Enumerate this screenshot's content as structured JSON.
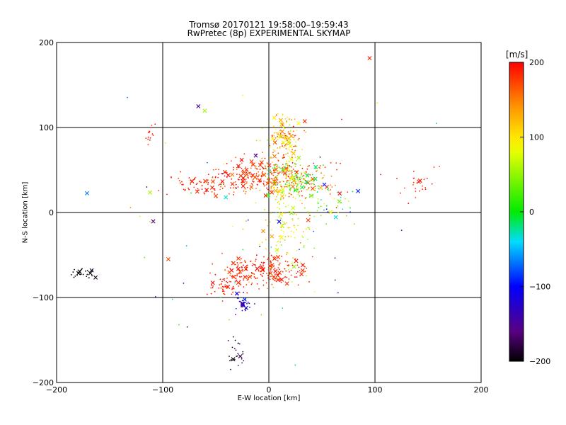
{
  "title_line1": "Tromsø 20170121 19:58:00–19:59:43",
  "title_line2": "RwPretec (8p) EXPERIMENTAL SKYMAP",
  "colorbar_unit": "[m/s]",
  "chart_data": {
    "type": "scatter",
    "title": "Tromsø 20170121 19:58:00–19:59:43 RwPretec (8p) EXPERIMENTAL SKYMAP",
    "xlabel": "E-W location [km]",
    "ylabel": "N-S location [km]",
    "xlim": [
      -200,
      200
    ],
    "ylim": [
      -200,
      200
    ],
    "xticks": [
      -200,
      -100,
      0,
      100,
      200
    ],
    "yticks": [
      -200,
      -100,
      0,
      100,
      200
    ],
    "grid": true,
    "colorbar": {
      "label": "[m/s]",
      "range": [
        -200,
        200
      ],
      "ticks": [
        200,
        100,
        0,
        -100,
        -200
      ],
      "colormap": "black-purple-blue-cyan-green-yellow-orange-red"
    },
    "markers": {
      "velocity": "dot",
      "echo": "x"
    },
    "clusters": [
      {
        "name": "upper-central",
        "x": 15,
        "y": 85,
        "sx": 8,
        "sy": 15,
        "n": 150,
        "v": [
          50,
          200
        ]
      },
      {
        "name": "central-red",
        "x": -2,
        "y": 42,
        "sx": 28,
        "sy": 10,
        "n": 300,
        "v": [
          150,
          200
        ]
      },
      {
        "name": "central-green",
        "x": 25,
        "y": 38,
        "sx": 14,
        "sy": 10,
        "n": 120,
        "v": [
          -20,
          80
        ]
      },
      {
        "name": "left-west",
        "x": -65,
        "y": 32,
        "sx": 14,
        "sy": 7,
        "n": 60,
        "v": [
          170,
          200
        ]
      },
      {
        "name": "left-upper",
        "x": -112,
        "y": 90,
        "sx": 3,
        "sy": 7,
        "n": 15,
        "v": [
          180,
          200
        ]
      },
      {
        "name": "mid-column",
        "x": 18,
        "y": -5,
        "sx": 12,
        "sy": 35,
        "n": 160,
        "v": [
          40,
          140
        ]
      },
      {
        "name": "lower-red",
        "x": -5,
        "y": -68,
        "sx": 20,
        "sy": 10,
        "n": 220,
        "v": [
          170,
          200
        ]
      },
      {
        "name": "lower-left",
        "x": -40,
        "y": -88,
        "sx": 8,
        "sy": 6,
        "n": 50,
        "v": [
          180,
          200
        ]
      },
      {
        "name": "lower-blue",
        "x": -24,
        "y": -108,
        "sx": 4,
        "sy": 6,
        "n": 30,
        "v": [
          -200,
          -80
        ]
      },
      {
        "name": "bottom-column",
        "x": -30,
        "y": -165,
        "sx": 4,
        "sy": 10,
        "n": 25,
        "v": [
          -200,
          -150
        ]
      },
      {
        "name": "far-left-black",
        "x": -173,
        "y": -71,
        "sx": 8,
        "sy": 3,
        "n": 25,
        "v": [
          -200,
          -190
        ]
      },
      {
        "name": "right-cluster",
        "x": 140,
        "y": 32,
        "sx": 10,
        "sy": 10,
        "n": 25,
        "v": [
          170,
          200
        ]
      },
      {
        "name": "right-mid",
        "x": 62,
        "y": 10,
        "sx": 12,
        "sy": 12,
        "n": 40,
        "v": [
          -100,
          200
        ]
      },
      {
        "name": "scattered",
        "x": -20,
        "y": -20,
        "sx": 70,
        "sy": 70,
        "n": 80,
        "v": [
          -200,
          200
        ]
      }
    ]
  }
}
